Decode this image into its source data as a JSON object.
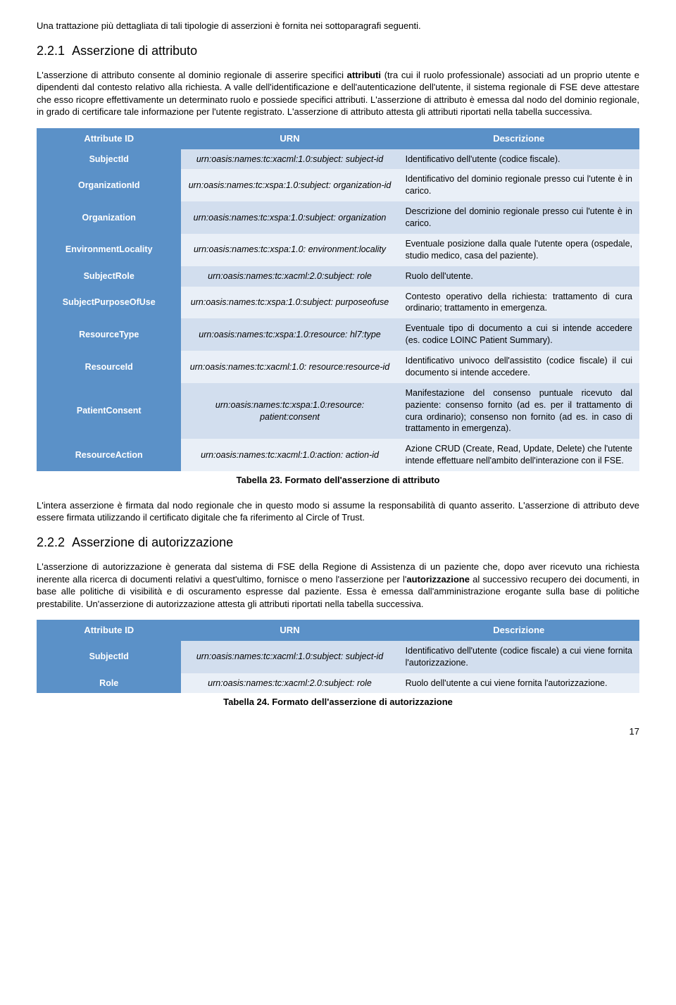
{
  "intro_line": "Una trattazione più dettagliata di tali tipologie di asserzioni è fornita nei sottoparagrafi seguenti.",
  "sec1": {
    "num": "2.2.1",
    "title": "Asserzione di attributo",
    "p1_a": "L'asserzione di attributo consente al dominio regionale di asserire specifici ",
    "p1_b": "attributi",
    "p1_c": " (tra cui il ruolo professionale) associati ad un proprio utente e dipendenti dal contesto relativo alla richiesta. A valle dell'identificazione e dell'autenticazione dell'utente, il sistema regionale di FSE deve attestare che esso ricopre effettivamente un determinato ruolo e possiede specifici attributi. L'asserzione di attributo è emessa dal nodo del dominio regionale, in grado di certificare tale informazione per l'utente registrato. L'asserzione di attributo attesta gli attributi riportati nella tabella successiva."
  },
  "table1": {
    "headers": [
      "Attribute ID",
      "URN",
      "Descrizione"
    ],
    "rows": [
      {
        "id": "SubjectId",
        "urn": "urn:oasis:names:tc:xacml:1.0:subject: subject-id",
        "desc": "Identificativo dell'utente (codice fiscale)."
      },
      {
        "id": "OrganizationId",
        "urn": "urn:oasis:names:tc:xspa:1.0:subject: organization-id",
        "desc": "Identificativo del dominio regionale presso cui l'utente è in carico."
      },
      {
        "id": "Organization",
        "urn": "urn:oasis:names:tc:xspa:1.0:subject: organization",
        "desc": "Descrizione del dominio regionale presso cui l'utente è in carico."
      },
      {
        "id": "EnvironmentLocality",
        "urn": "urn:oasis:names:tc:xspa:1.0: environment:locality",
        "desc": "Eventuale posizione dalla quale l'utente opera (ospedale, studio medico, casa del paziente)."
      },
      {
        "id": "SubjectRole",
        "urn": "urn:oasis:names:tc:xacml:2.0:subject: role",
        "desc": "Ruolo dell'utente."
      },
      {
        "id": "SubjectPurposeOfUse",
        "urn": "urn:oasis:names:tc:xspa:1.0:subject: purposeofuse",
        "desc": "Contesto operativo della richiesta: trattamento di cura ordinario; trattamento in emergenza."
      },
      {
        "id": "ResourceType",
        "urn": "urn:oasis:names:tc:xspa:1.0:resource: hl7:type",
        "desc": "Eventuale tipo di documento a cui si intende accedere (es. codice LOINC Patient Summary)."
      },
      {
        "id": "ResourceId",
        "urn": "urn:oasis:names:tc:xacml:1.0: resource:resource-id",
        "desc": "Identificativo univoco dell'assistito (codice fiscale) il cui documento si intende accedere."
      },
      {
        "id": "PatientConsent",
        "urn": "urn:oasis:names:tc:xspa:1.0:resource: patient:consent",
        "desc": "Manifestazione del consenso puntuale ricevuto dal paziente: consenso fornito (ad es. per il trattamento di cura ordinario); consenso non fornito (ad es. in caso di trattamento in emergenza)."
      },
      {
        "id": "ResourceAction",
        "urn": "urn:oasis:names:tc:xacml:1.0:action: action-id",
        "desc": "Azione CRUD (Create, Read, Update, Delete) che l'utente intende effettuare nell'ambito dell'interazione con il FSE."
      }
    ],
    "caption": "Tabella 23. Formato dell'asserzione di attributo"
  },
  "p_after_t1": "L'intera asserzione è firmata dal nodo regionale che in questo modo si assume la responsabilità di quanto asserito. L'asserzione di attributo deve essere firmata utilizzando il certificato digitale che fa riferimento al Circle of Trust.",
  "sec2": {
    "num": "2.2.2",
    "title": "Asserzione di autorizzazione",
    "p1_a": "L'asserzione di autorizzazione è generata dal sistema di FSE della Regione di Assistenza di un paziente che, dopo aver ricevuto una richiesta inerente alla ricerca di documenti relativi a quest'ultimo, fornisce o meno l'asserzione per l'",
    "p1_b": "autorizzazione",
    "p1_c": " al successivo recupero dei documenti, in base alle politiche di visibilità e di oscuramento espresse dal paziente. Essa è emessa dall'amministrazione erogante sulla base di politiche prestabilite. Un'asserzione di autorizzazione attesta gli attributi riportati nella tabella successiva."
  },
  "table2": {
    "headers": [
      "Attribute ID",
      "URN",
      "Descrizione"
    ],
    "rows": [
      {
        "id": "SubjectId",
        "urn": "urn:oasis:names:tc:xacml:1.0:subject: subject-id",
        "desc": "Identificativo dell'utente (codice fiscale) a cui viene fornita l'autorizzazione."
      },
      {
        "id": "Role",
        "urn": "urn:oasis:names:tc:xacml:2.0:subject: role",
        "desc": "Ruolo dell'utente a cui viene fornita l'autorizzazione."
      }
    ],
    "caption": "Tabella 24. Formato dell'asserzione di autorizzazione"
  },
  "page_number": "17"
}
